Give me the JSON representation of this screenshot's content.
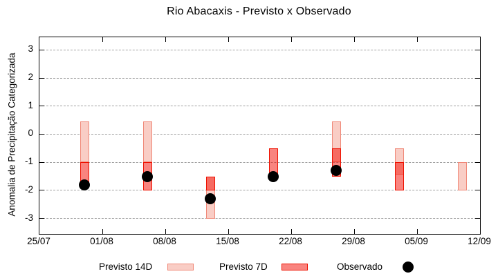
{
  "title": "Rio Abacaxis - Previsto x Observado",
  "ylabel": "Anomalia de Precipitação Categorizada",
  "legend": {
    "previsto14_label": "Previsto 14D",
    "previsto7_label": "Previsto 7D",
    "observado_label": "Observado"
  },
  "colors": {
    "previsto14_fill": "#f9cdc5",
    "previsto14_border": "#f08878",
    "previsto7_fill": "rgba(243,10,0,0.5)",
    "previsto7_border": "#ee1100",
    "observado": "#000000",
    "grid": "#9e9e9e",
    "axis": "#000000"
  },
  "chart_data": {
    "type": "bar",
    "title": "Rio Abacaxis - Previsto x Observado",
    "xlabel": "",
    "ylabel": "Anomalia de Precipitação Categorizada",
    "grid": "horizontal-dashed",
    "legend_position": "bottom",
    "ylim": [
      -3.55,
      3.45
    ],
    "y_ticks": [
      3,
      2,
      1,
      0,
      -1,
      -2,
      -3
    ],
    "x_tick_labels": [
      "25/07",
      "01/08",
      "08/08",
      "15/08",
      "22/08",
      "29/08",
      "05/09",
      "12/09"
    ],
    "x_tick_interval_days": 7,
    "x_total_days": 49,
    "series_legend": [
      "Previsto 14D",
      "Previsto 7D",
      "Observado"
    ],
    "series": [
      {
        "date": "30/07",
        "day": 5,
        "previsto14": [
          0.45,
          -1.0
        ],
        "previsto7": [
          -1.0,
          -1.9
        ],
        "observado": -1.8
      },
      {
        "date": "06/08",
        "day": 12,
        "previsto14": [
          0.45,
          -1.0
        ],
        "previsto7": [
          -1.0,
          -2.0
        ],
        "observado": -1.5
      },
      {
        "date": "13/08",
        "day": 19,
        "previsto14": [
          -1.5,
          -3.0
        ],
        "previsto7": [
          -1.5,
          -2.0
        ],
        "observado": -2.3
      },
      {
        "date": "20/08",
        "day": 26,
        "previsto14": null,
        "previsto7": [
          -0.5,
          -1.45
        ],
        "observado": -1.5
      },
      {
        "date": "27/08",
        "day": 33,
        "previsto14": [
          0.45,
          -1.0
        ],
        "previsto7": [
          -0.5,
          -1.5
        ],
        "observado": -1.3
      },
      {
        "date": "03/09",
        "day": 40,
        "previsto14": [
          -0.5,
          -1.45
        ],
        "previsto7": [
          -1.0,
          -2.0
        ],
        "observado": null
      },
      {
        "date": "10/09",
        "day": 47,
        "previsto14": [
          -1.0,
          -2.0
        ],
        "previsto7": null,
        "observado": null
      }
    ]
  }
}
